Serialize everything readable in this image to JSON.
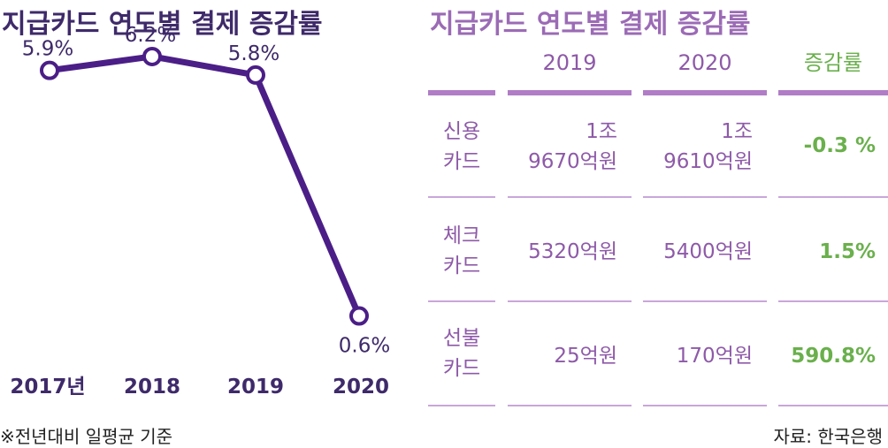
{
  "chart_data": {
    "type": "line",
    "title": "지급카드 연도별 결제 증감률",
    "categories": [
      "2017년",
      "2018",
      "2019",
      "2020"
    ],
    "values": [
      5.9,
      6.2,
      5.8,
      0.6
    ],
    "value_labels": [
      "5.9%",
      "6.2%",
      "5.8%",
      "0.6%"
    ],
    "unit": "%",
    "ylim": [
      0,
      7
    ],
    "grid": false,
    "color": "#4b1e87"
  },
  "table": {
    "title": "지급카드 연도별 결제 증감률",
    "headers": [
      "2019",
      "2020",
      "증감률"
    ],
    "rows": [
      {
        "label": "신용\n카드",
        "v2019": "1조\n9670억원",
        "v2020": "1조\n9610억원",
        "change": "-0.3 %"
      },
      {
        "label": "체크\n카드",
        "v2019": "5320억원",
        "v2020": "5400억원",
        "change": "1.5%"
      },
      {
        "label": "선불\n카드",
        "v2019": "25억원",
        "v2020": "170억원",
        "change": "590.8%"
      }
    ],
    "colors": {
      "text": "#8e5aa8",
      "change": "#6ab04c",
      "lines": "#b07dc6"
    }
  },
  "footnote": "※전년대비 일평균 기준",
  "source": "자료: 한국은행"
}
